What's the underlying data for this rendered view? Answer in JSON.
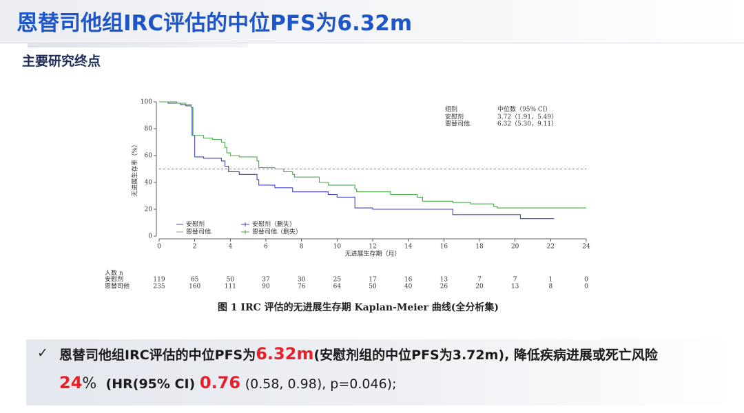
{
  "header": {
    "title": "恩替司他组IRC评估的中位PFS为6.32m",
    "subtitle": "主要研究终点"
  },
  "chart_data": {
    "type": "step",
    "xlabel": "无进展生存期（月）",
    "ylabel": "无进展生存率（%）",
    "xlim": [
      0,
      24
    ],
    "xticks": [
      0,
      2,
      4,
      6,
      8,
      10,
      12,
      14,
      16,
      18,
      20,
      22,
      24
    ],
    "ylim": [
      0,
      100
    ],
    "yticks": [
      0,
      20,
      40,
      60,
      80,
      100
    ],
    "ref_line": 50,
    "ref_color": "#e05050",
    "series": [
      {
        "name": "安慰剂",
        "color": "#3c45c8",
        "x": [
          0,
          0.5,
          1.2,
          1.5,
          1.8,
          1.85,
          2.0,
          2.5,
          3.5,
          3.7,
          3.9,
          4.5,
          5.5,
          5.6,
          6.5,
          7.5,
          9.5,
          10,
          11,
          12,
          16.5,
          20.3,
          22.2
        ],
        "values": [
          100,
          99,
          98,
          97,
          96,
          75,
          59,
          58,
          56,
          52,
          48,
          46,
          42,
          38,
          36,
          33,
          31,
          29,
          21,
          20,
          16,
          13,
          13
        ]
      },
      {
        "name": "恩替司他",
        "color": "#4aa84a",
        "x": [
          0,
          1,
          1.5,
          1.8,
          1.9,
          2.5,
          3.0,
          3.5,
          3.7,
          3.8,
          4,
          4.5,
          5.5,
          5.6,
          6.5,
          7,
          7.5,
          7.6,
          9,
          9.5,
          11,
          11.1,
          13,
          14.5,
          14.8,
          16.5,
          17.5,
          18.8,
          19,
          24
        ],
        "values": [
          100,
          99,
          98,
          96,
          75,
          73,
          72,
          70,
          66,
          62,
          60,
          59,
          56,
          51,
          50,
          48,
          46,
          44,
          40,
          38,
          35,
          33,
          31,
          29,
          26,
          25,
          24,
          22,
          21,
          21
        ]
      }
    ],
    "censor_legend": [
      "安慰剂（删失）",
      "恩替司他（删失）"
    ],
    "median_table": {
      "header": [
        "组别",
        "中位数（95% CI）"
      ],
      "rows": [
        [
          "安慰剂",
          "3.72（1.91，5.49）"
        ],
        [
          "恩替司他",
          "6.32（5.30，9.11）"
        ]
      ]
    },
    "risk_table": {
      "title": "人数 n",
      "rows": [
        {
          "label": "安慰剂",
          "values": [
            119,
            65,
            50,
            37,
            30,
            25,
            17,
            16,
            13,
            7,
            7,
            1,
            0
          ]
        },
        {
          "label": "恩替司他",
          "values": [
            235,
            160,
            111,
            90,
            76,
            64,
            50,
            40,
            26,
            20,
            13,
            8,
            0
          ]
        }
      ]
    },
    "caption": "图 1 IRC 评估的无进展生存期 Kaplan-Meier 曲线(全分析集)"
  },
  "conclusion": {
    "check": "✓",
    "parts": [
      "恩替司他组IRC评估的中位PFS为",
      "6.32m",
      "(安慰剂组的中位PFS为3.72m), 降低疾病进展或死亡风险",
      "24",
      "%",
      "(HR(95% CI)",
      "0.76",
      "(0.58, 0.98), p=0.046);"
    ]
  }
}
